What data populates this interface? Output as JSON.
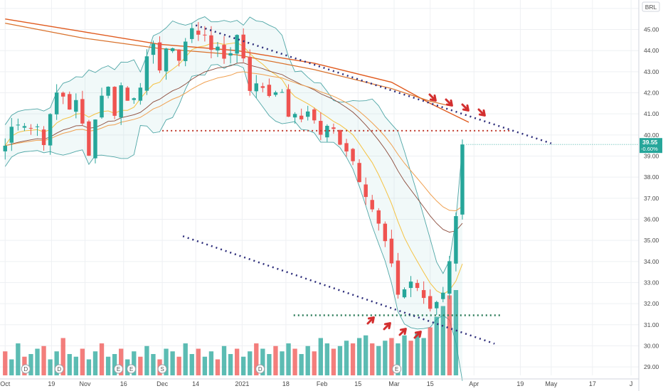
{
  "chart_data": {
    "type": "candlestick",
    "currency": "BRL",
    "x_tick_labels": [
      {
        "label": "Oct",
        "day": 0
      },
      {
        "label": "19",
        "day": 18
      },
      {
        "label": "Nov",
        "day": 31
      },
      {
        "label": "16",
        "day": 46
      },
      {
        "label": "Dec",
        "day": 61
      },
      {
        "label": "14",
        "day": 74
      },
      {
        "label": "2021",
        "day": 92
      },
      {
        "label": "18",
        "day": 109
      },
      {
        "label": "Feb",
        "day": 123
      },
      {
        "label": "15",
        "day": 137
      },
      {
        "label": "Mar",
        "day": 151
      },
      {
        "label": "15",
        "day": 165
      },
      {
        "label": "Apr",
        "day": 182
      },
      {
        "label": "19",
        "day": 200
      },
      {
        "label": "May",
        "day": 212
      },
      {
        "label": "17",
        "day": 228
      },
      {
        "label": "J",
        "day": 243
      }
    ],
    "y_ticks": [
      29,
      30,
      31,
      32,
      33,
      34,
      35,
      36,
      37,
      38,
      39,
      40,
      41,
      42,
      43,
      44,
      45,
      46
    ],
    "ylim": [
      28.6,
      46.4
    ],
    "last_price": {
      "value": "39.55",
      "change": "-0.60%"
    },
    "closes": [
      {
        "day": 0,
        "close": 39.5
      },
      {
        "day": 3,
        "close": 40.5
      },
      {
        "day": 6,
        "close": 41.0
      },
      {
        "day": 9,
        "close": 40.3
      },
      {
        "day": 12,
        "close": 40.5
      },
      {
        "day": 15,
        "close": 39.9
      },
      {
        "day": 18,
        "close": 40.8
      },
      {
        "day": 21,
        "close": 42.5
      },
      {
        "day": 24,
        "close": 41.3
      },
      {
        "day": 27,
        "close": 41.6
      },
      {
        "day": 30,
        "close": 40.4
      },
      {
        "day": 33,
        "close": 39.2
      },
      {
        "day": 36,
        "close": 41.5
      },
      {
        "day": 39,
        "close": 42.7
      },
      {
        "day": 42,
        "close": 41.0
      },
      {
        "day": 45,
        "close": 42.3
      },
      {
        "day": 48,
        "close": 41.5
      },
      {
        "day": 51,
        "close": 42.3
      },
      {
        "day": 54,
        "close": 43.0
      },
      {
        "day": 57,
        "close": 44.0
      },
      {
        "day": 60,
        "close": 43.4
      },
      {
        "day": 63,
        "close": 44.3
      },
      {
        "day": 66,
        "close": 43.4
      },
      {
        "day": 69,
        "close": 44.2
      },
      {
        "day": 72,
        "close": 45.1
      },
      {
        "day": 75,
        "close": 44.6
      },
      {
        "day": 78,
        "close": 45.0
      },
      {
        "day": 81,
        "close": 44.0
      },
      {
        "day": 84,
        "close": 43.5
      },
      {
        "day": 87,
        "close": 44.0
      },
      {
        "day": 90,
        "close": 44.7
      },
      {
        "day": 93,
        "close": 43.6
      },
      {
        "day": 96,
        "close": 41.8
      },
      {
        "day": 99,
        "close": 42.6
      },
      {
        "day": 102,
        "close": 41.9
      },
      {
        "day": 105,
        "close": 42.4
      },
      {
        "day": 108,
        "close": 41.5
      },
      {
        "day": 111,
        "close": 40.9
      },
      {
        "day": 114,
        "close": 40.4
      },
      {
        "day": 117,
        "close": 41.5
      },
      {
        "day": 120,
        "close": 40.6
      },
      {
        "day": 123,
        "close": 40.0
      },
      {
        "day": 126,
        "close": 40.3
      },
      {
        "day": 129,
        "close": 40.0
      },
      {
        "day": 132,
        "close": 39.6
      },
      {
        "day": 135,
        "close": 38.8
      },
      {
        "day": 138,
        "close": 38.0
      },
      {
        "day": 141,
        "close": 37.2
      },
      {
        "day": 144,
        "close": 35.9
      },
      {
        "day": 147,
        "close": 35.1
      },
      {
        "day": 150,
        "close": 33.5
      },
      {
        "day": 153,
        "close": 32.4
      },
      {
        "day": 156,
        "close": 32.9
      },
      {
        "day": 159,
        "close": 33.2
      },
      {
        "day": 162,
        "close": 32.0
      },
      {
        "day": 165,
        "close": 31.8
      },
      {
        "day": 168,
        "close": 32.2
      },
      {
        "day": 171,
        "close": 33.0
      },
      {
        "day": 174,
        "close": 35.5
      },
      {
        "day": 177,
        "close": 36.8
      },
      {
        "day": 179,
        "close": 39.55
      }
    ],
    "volume": [
      0.45,
      0.3,
      0.6,
      0.35,
      0.4,
      0.5,
      0.55,
      0.3,
      0.45,
      0.7,
      0.4,
      0.35,
      0.5,
      0.3,
      0.45,
      0.6,
      0.35,
      0.4,
      0.5,
      0.3,
      0.45,
      0.35,
      0.55,
      0.4,
      0.3,
      0.5,
      0.45,
      0.35,
      0.6,
      0.4,
      0.5,
      0.35,
      0.45,
      0.3,
      0.55,
      0.4,
      0.5,
      0.35,
      0.45,
      0.6,
      0.5,
      0.4,
      0.55,
      0.45,
      0.6,
      0.5,
      0.4,
      0.55,
      0.45,
      0.7,
      0.6,
      0.5,
      0.55,
      0.65,
      0.6,
      0.7,
      0.75,
      0.6,
      0.55,
      0.65,
      0.7,
      0.6,
      0.75,
      0.65,
      0.8,
      0.7,
      0.9,
      1.1,
      1.3,
      1.5,
      1.6
    ],
    "sma_long": [
      {
        "day": 0,
        "value": 45.5
      },
      {
        "day": 30,
        "value": 44.9
      },
      {
        "day": 60,
        "value": 44.3
      },
      {
        "day": 90,
        "value": 44.0
      },
      {
        "day": 120,
        "value": 43.4
      },
      {
        "day": 150,
        "value": 42.5
      },
      {
        "day": 165,
        "value": 41.5
      },
      {
        "day": 180,
        "value": 40.6
      }
    ],
    "sma_mid": [
      {
        "day": 0,
        "value": 45.3
      },
      {
        "day": 30,
        "value": 44.6
      },
      {
        "day": 60,
        "value": 44.1
      },
      {
        "day": 90,
        "value": 43.8
      },
      {
        "day": 120,
        "value": 43.1
      },
      {
        "day": 150,
        "value": 42.2
      },
      {
        "day": 165,
        "value": 41.6
      },
      {
        "day": 172,
        "value": 41.4
      }
    ],
    "horizontal_levels": [
      40.2,
      31.45
    ],
    "resistance_trendline": [
      {
        "day": 74,
        "value": 45.2
      },
      {
        "day": 212,
        "value": 39.6
      }
    ],
    "support_trendline": [
      {
        "day": 69,
        "value": 35.2
      },
      {
        "day": 190,
        "value": 30.1
      }
    ],
    "event_markers": [
      {
        "label": "D",
        "day": 8
      },
      {
        "label": "D",
        "day": 21
      },
      {
        "label": "E",
        "day": 44
      },
      {
        "label": "E",
        "day": 49
      },
      {
        "label": "S",
        "day": 61
      },
      {
        "label": "D",
        "day": 99
      },
      {
        "label": "E",
        "day": 152
      }
    ]
  }
}
